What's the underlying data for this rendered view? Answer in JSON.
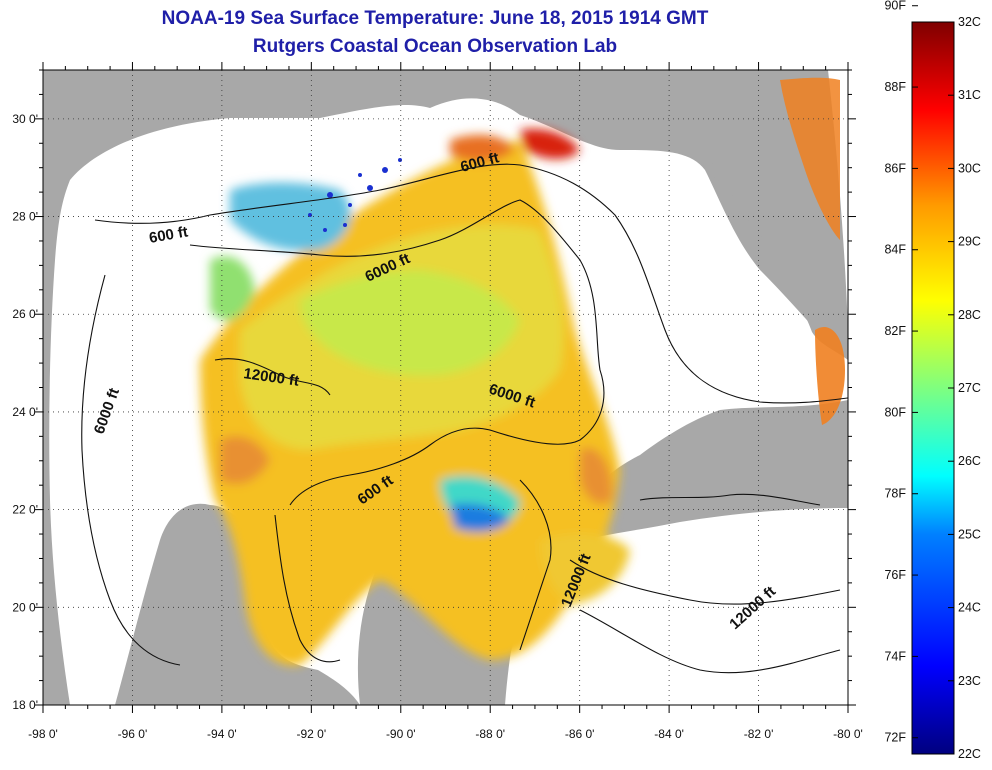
{
  "title": "NOAA-19 Sea Surface Temperature:  June 18, 2015 1914 GMT",
  "subtitle": "Rutgers Coastal Ocean Observation Lab",
  "map": {
    "lon_ticks": [
      "-98 0'",
      "-96 0'",
      "-94 0'",
      "-92 0'",
      "-90 0'",
      "-88 0'",
      "-86 0'",
      "-84 0'",
      "-82 0'",
      "-80 0'"
    ],
    "lat_ticks": [
      "18 0'",
      "20 0'",
      "22 0'",
      "24 0'",
      "26 0'",
      "28 0'",
      "30 0'"
    ],
    "lon_range": [
      -98,
      -80
    ],
    "lat_range": [
      18,
      31
    ],
    "grid": "dotted",
    "contour_labels": [
      "600 ft",
      "600 ft",
      "6000 ft",
      "12000 ft",
      "6000 ft",
      "6000 ft",
      "600 ft",
      "12000 ft",
      "12000 ft"
    ],
    "colors": {
      "land": "#a8a8a8",
      "no_data": "#ffffff"
    }
  },
  "colorbar": {
    "fahrenheit": [
      "90F",
      "88F",
      "86F",
      "84F",
      "82F",
      "80F",
      "78F",
      "76F",
      "74F",
      "72F"
    ],
    "celsius": [
      "32C",
      "31C",
      "30C",
      "29C",
      "28C",
      "27C",
      "26C",
      "25C",
      "24C",
      "23C",
      "22C"
    ],
    "range_c": [
      22,
      32
    ]
  }
}
